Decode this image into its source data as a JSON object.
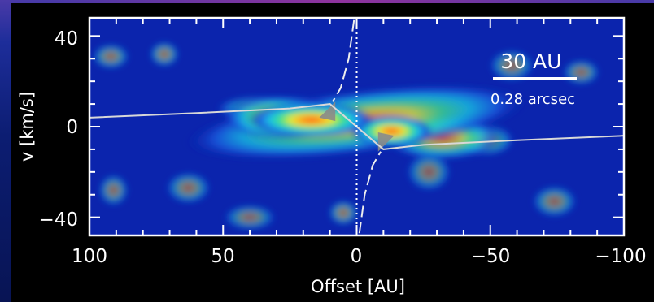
{
  "chart_data": {
    "type": "heatmap",
    "xlabel": "Offset [AU]",
    "ylabel": "v [km/s]",
    "xlim": [
      100,
      -100
    ],
    "ylim": [
      -48,
      48
    ],
    "x_ticks": [
      "100",
      "50",
      "0",
      "−50",
      "−100"
    ],
    "y_ticks": [
      "40",
      "0",
      "−40"
    ],
    "x_tick_values": [
      100,
      50,
      0,
      -50,
      -100
    ],
    "y_tick_values": [
      40,
      0,
      -40
    ],
    "scale_bar": {
      "length": "30 AU",
      "angular": "0.28 arcsec"
    },
    "colormap": [
      "#0a1fa8",
      "#1a5ae0",
      "#19c3e6",
      "#3fe08a",
      "#f2ea2e",
      "#ff9418",
      "#ff3d10"
    ],
    "emission_blobs": [
      {
        "x": 0,
        "v": 2,
        "sx": 46,
        "sv": 10,
        "intensity": 0.55,
        "tilt": -7
      },
      {
        "x": 17,
        "v": 3,
        "sx": 17,
        "sv": 5.5,
        "intensity": 0.95,
        "tilt": 0
      },
      {
        "x": 28,
        "v": 4,
        "sx": 16,
        "sv": 7,
        "intensity": 0.55,
        "tilt": 0
      },
      {
        "x": -13,
        "v": -2,
        "sx": 11,
        "sv": 5,
        "intensity": 0.78,
        "tilt": 0
      },
      {
        "x": -32,
        "v": -5,
        "sx": 16,
        "sv": 7,
        "intensity": 0.5,
        "tilt": 0
      },
      {
        "x": 36,
        "v": 8,
        "sx": 12,
        "sv": 4,
        "intensity": 0.38,
        "tilt": 0
      },
      {
        "x": -48,
        "v": -6,
        "sx": 8,
        "sv": 5,
        "intensity": 0.32,
        "tilt": 0
      },
      {
        "x": 72,
        "v": 32,
        "sx": 4,
        "sv": 4,
        "intensity": 0.3,
        "tilt": 0
      },
      {
        "x": 92,
        "v": 31,
        "sx": 5,
        "sv": 4,
        "intensity": 0.28,
        "tilt": 0
      },
      {
        "x": -58,
        "v": 27,
        "sx": 6,
        "sv": 5,
        "intensity": 0.26,
        "tilt": 0
      },
      {
        "x": -84,
        "v": 24,
        "sx": 5,
        "sv": 4,
        "intensity": 0.26,
        "tilt": 0
      },
      {
        "x": 63,
        "v": -27,
        "sx": 6,
        "sv": 5,
        "intensity": 0.26,
        "tilt": 0
      },
      {
        "x": 5,
        "v": -38,
        "sx": 4,
        "sv": 4,
        "intensity": 0.3,
        "tilt": 0
      },
      {
        "x": -27,
        "v": -20,
        "sx": 6,
        "sv": 6,
        "intensity": 0.24,
        "tilt": 0
      },
      {
        "x": -74,
        "v": -33,
        "sx": 6,
        "sv": 5,
        "intensity": 0.26,
        "tilt": 0
      },
      {
        "x": 40,
        "v": -40,
        "sx": 7,
        "sv": 4,
        "intensity": 0.24,
        "tilt": 0
      },
      {
        "x": 91,
        "v": -28,
        "sx": 4,
        "sv": 5,
        "intensity": 0.26,
        "tilt": 0
      }
    ],
    "model_curve_points": [
      [
        100,
        4
      ],
      [
        60,
        6
      ],
      [
        25,
        8
      ],
      [
        10,
        10
      ],
      [
        -10,
        -10
      ],
      [
        -25,
        -8
      ],
      [
        -60,
        -6
      ],
      [
        -100,
        -4
      ]
    ],
    "keplerian_dashed_upper": [
      [
        1,
        47
      ],
      [
        3,
        30
      ],
      [
        6,
        17
      ],
      [
        9,
        11
      ]
    ],
    "keplerian_dashed_lower": [
      [
        -1,
        -47
      ],
      [
        -3,
        -30
      ],
      [
        -6,
        -17
      ],
      [
        -9,
        -11
      ]
    ],
    "grey_wedges": [
      [
        [
          14,
          4
        ],
        [
          8,
          11
        ],
        [
          8,
          2.5
        ]
      ],
      [
        [
          -14,
          -4
        ],
        [
          -8,
          -11
        ],
        [
          -8,
          -2.5
        ]
      ]
    ],
    "grid": false
  }
}
